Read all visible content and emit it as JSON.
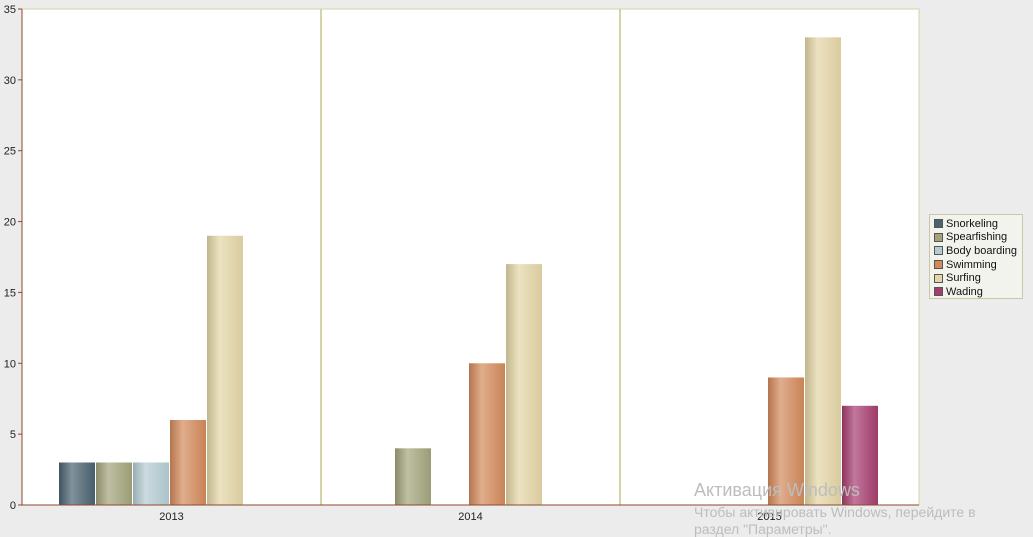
{
  "chart_data": {
    "type": "bar",
    "categories": [
      "2013",
      "2014",
      "2015"
    ],
    "series": [
      {
        "name": "Snorkeling",
        "color": "#4a6370",
        "values": [
          3,
          null,
          null
        ]
      },
      {
        "name": "Spearfishing",
        "color": "#a3a47c",
        "values": [
          3,
          4,
          null
        ]
      },
      {
        "name": "Body boarding",
        "color": "#b4ccd2",
        "values": [
          3,
          null,
          null
        ]
      },
      {
        "name": "Swimming",
        "color": "#d28a5a",
        "values": [
          6,
          10,
          9
        ]
      },
      {
        "name": "Surfing",
        "color": "#e4d6a6",
        "values": [
          19,
          17,
          33
        ]
      },
      {
        "name": "Wading",
        "color": "#a63d6e",
        "values": [
          null,
          null,
          7
        ]
      }
    ],
    "ylim": [
      0,
      35
    ],
    "yticks": [
      "0",
      "5",
      "10",
      "15",
      "20",
      "25",
      "30",
      "35"
    ],
    "grid": "vertical separators between categories",
    "legend_position": "right",
    "title": "",
    "xlabel": "",
    "ylabel": ""
  },
  "watermark": {
    "title": "Активация Windows",
    "line1": "Чтобы активировать Windows, перейдите в",
    "line2": "раздел \"Параметры\"."
  },
  "colors": {
    "plot_background": "#ffffff",
    "page_background": "#ececec",
    "axis": "#8b4a2e",
    "separator": "#d4d3a6"
  }
}
